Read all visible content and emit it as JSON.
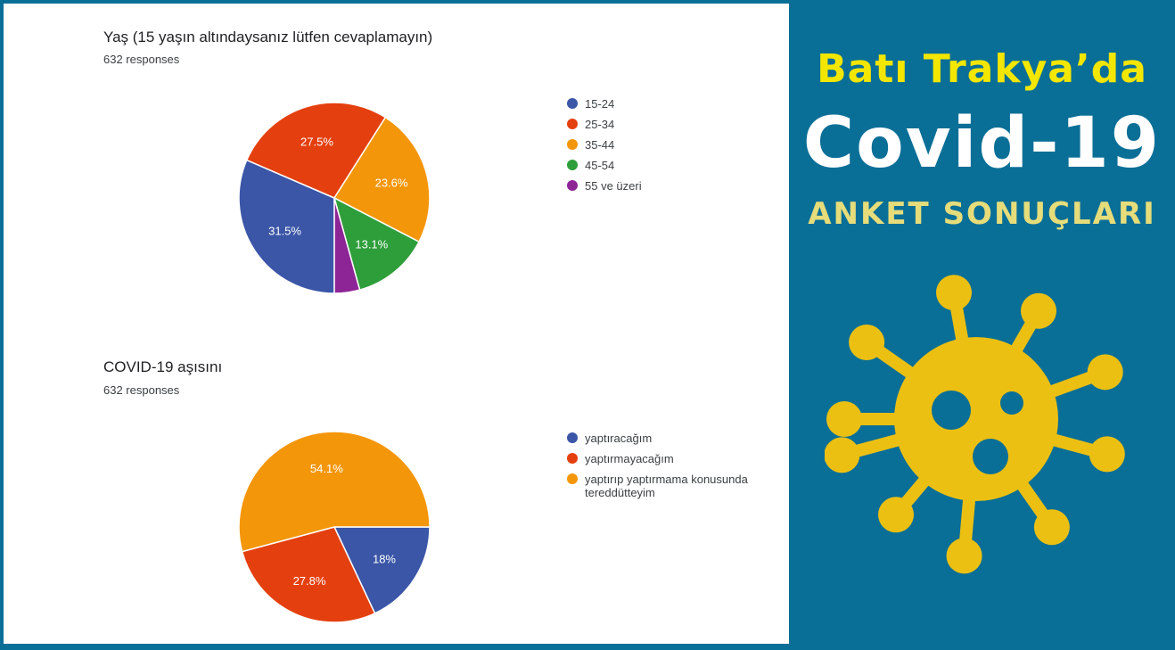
{
  "colors": {
    "series": [
      "#3b56a7",
      "#e4400f",
      "#f4960a",
      "#2e9e3a",
      "#8e2597"
    ],
    "panel": "#0a6f97",
    "virus": "#ecc012"
  },
  "banner": {
    "line1": "Batı Trakya’da",
    "line2": "Covid-19",
    "line3": "ANKET SONUÇLARI",
    "icon": "virus-icon"
  },
  "chart_data": [
    {
      "type": "pie",
      "title": "Yaş (15 yaşın altındaysanız lütfen cevaplamayın)",
      "subtitle": "632 responses",
      "categories": [
        "15-24",
        "25-34",
        "35-44",
        "45-54",
        "55 ve üzeri"
      ],
      "values": [
        31.5,
        27.5,
        23.6,
        13.1,
        4.3
      ],
      "labels": [
        "31.5%",
        "27.5%",
        "23.6%",
        "13.1%",
        ""
      ],
      "legend": "right"
    },
    {
      "type": "pie",
      "title": "COVID-19 aşısını",
      "subtitle": "632 responses",
      "categories": [
        "yaptıracağım",
        "yaptırmayacağım",
        "yaptırıp yaptırmama konusunda tereddütteyim"
      ],
      "values": [
        18.0,
        27.8,
        54.1
      ],
      "labels": [
        "18%",
        "27.8%",
        "54.1%"
      ],
      "legend": "right"
    }
  ]
}
